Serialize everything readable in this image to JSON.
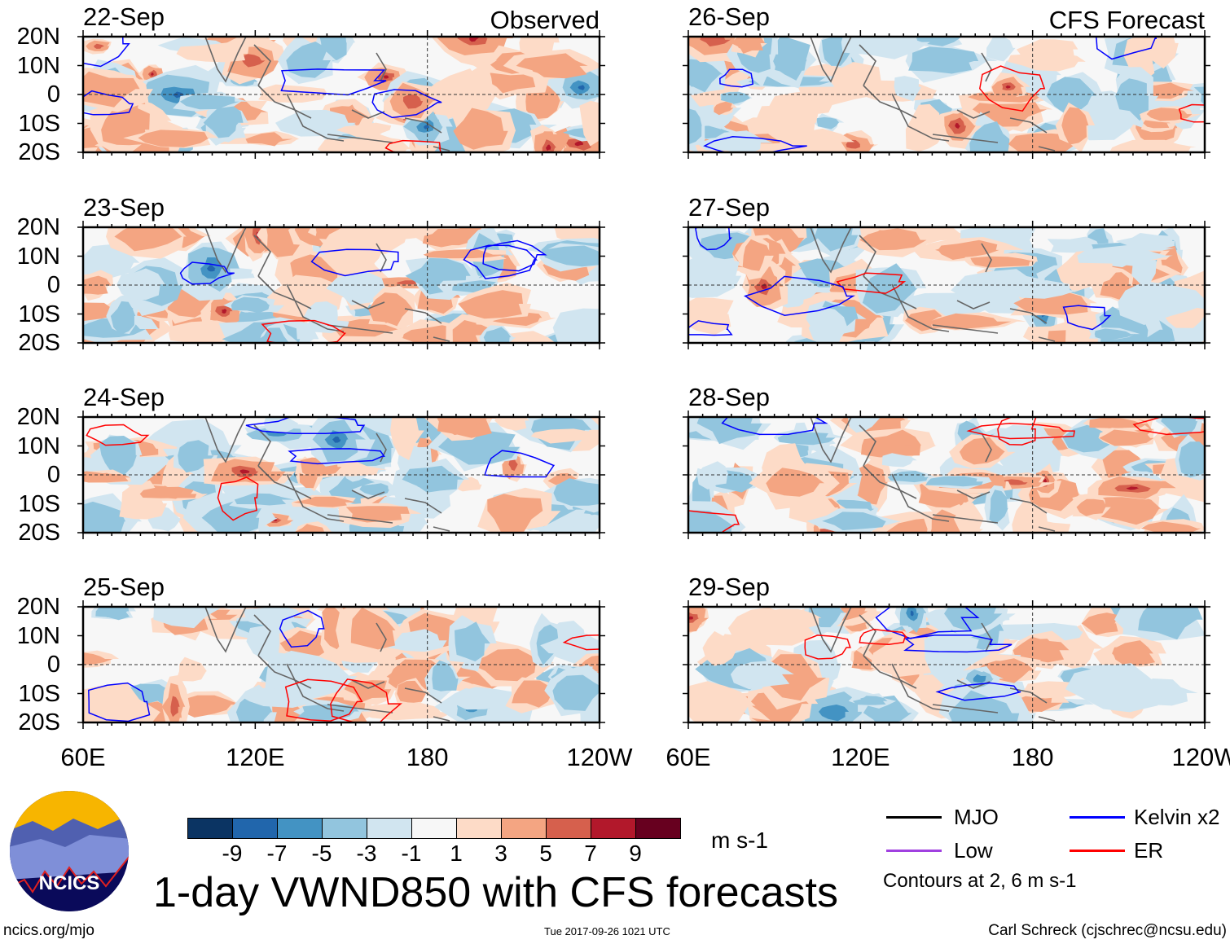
{
  "left_column": {
    "label": "Observed",
    "dates": [
      "22-Sep",
      "23-Sep",
      "24-Sep",
      "25-Sep"
    ]
  },
  "right_column": {
    "label": "CFS Forecast",
    "dates": [
      "26-Sep",
      "27-Sep",
      "28-Sep",
      "29-Sep"
    ]
  },
  "lat_labels": [
    "20N",
    "10N",
    "0",
    "10S",
    "20S"
  ],
  "lon_labels": [
    "60E",
    "120E",
    "180",
    "120W"
  ],
  "colorbar": {
    "colors": [
      "#0b3463",
      "#2166ac",
      "#4393c3",
      "#92c5de",
      "#d1e5f0",
      "#f7f7f7",
      "#fddbc7",
      "#f4a582",
      "#d6604d",
      "#b2182b",
      "#67001f"
    ],
    "labels": [
      "-9",
      "-7",
      "-5",
      "-3",
      "-1",
      "1",
      "3",
      "5",
      "7",
      "9"
    ],
    "units": "m s-1"
  },
  "title": "1-day VWND850 with CFS forecasts",
  "legend": {
    "items": [
      {
        "label": "MJO",
        "color": "#000000"
      },
      {
        "label": "Kelvin x2",
        "color": "#0000ff"
      },
      {
        "label": "Low",
        "color": "#a040e0"
      },
      {
        "label": "ER",
        "color": "#ff0000"
      }
    ],
    "note": "Contours at 2, 6 m s-1"
  },
  "logo": {
    "text": "NCICS"
  },
  "footer": {
    "url": "ncics.org/mjo",
    "timestamp": "Tue 2017-09-26 1021 UTC",
    "credit": "Carl Schreck (cjschrec@ncsu.edu)"
  }
}
